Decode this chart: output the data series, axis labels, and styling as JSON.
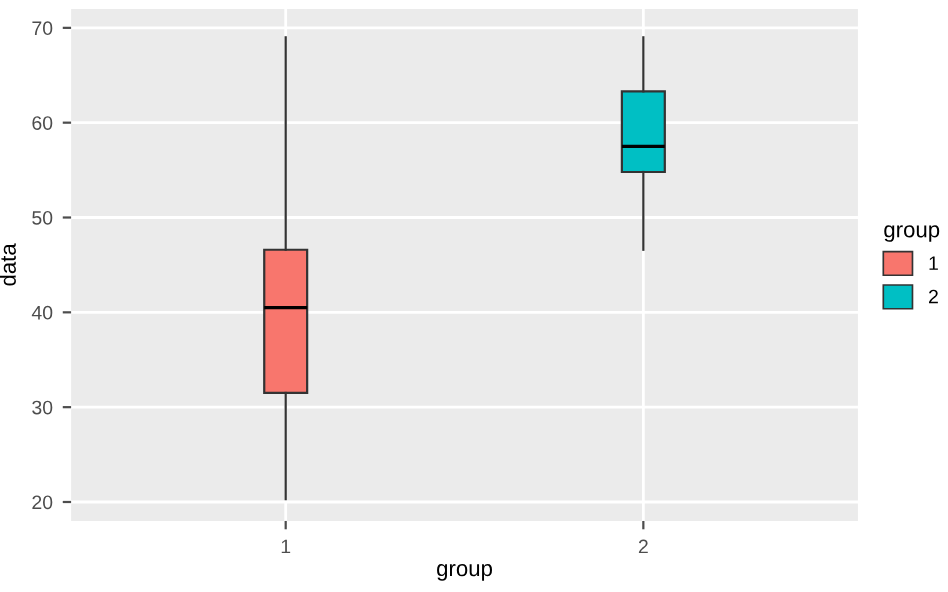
{
  "chart_data": {
    "type": "box",
    "xlabel": "group",
    "ylabel": "data",
    "legend_title": "group",
    "categories": [
      "1",
      "2"
    ],
    "series": [
      {
        "name": "1",
        "color": "#f8766d",
        "boxes": [
          {
            "low": 20.3,
            "q1": 31.5,
            "median": 40.5,
            "q3": 46.6,
            "high": 69
          },
          null
        ]
      },
      {
        "name": "2",
        "color": "#00bfc4",
        "boxes": [
          null,
          {
            "low": 46.6,
            "q1": 54.8,
            "median": 57.5,
            "q3": 63.3,
            "high": 69
          }
        ]
      }
    ],
    "ylim": [
      18,
      72
    ],
    "yticks": [
      20,
      30,
      40,
      50,
      60,
      70
    ],
    "grid": true,
    "legend": "right"
  }
}
